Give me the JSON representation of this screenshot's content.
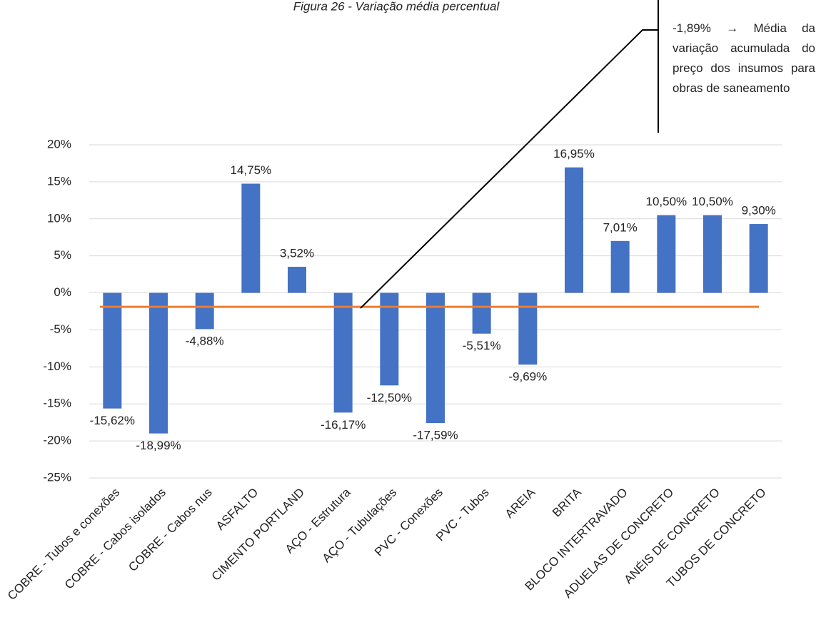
{
  "chart_data": {
    "type": "bar",
    "title": "Figura 26 - Variação média percentual",
    "categories": [
      "COBRE - Tubos e conexões",
      "COBRE - Cabos isolados",
      "COBRE - Cabos nus",
      "ASFALTO",
      "CIMENTO PORTLAND",
      "AÇO - Estrutura",
      "AÇO - Tubulações",
      "PVC - Conexões",
      "PVC - Tubos",
      "AREIA",
      "BRITA",
      "BLOCO INTERTRAVADO",
      "ADUELAS DE CONCRETO",
      "ANÉIS DE CONCRETO",
      "TUBOS DE CONCRETO"
    ],
    "values": [
      -15.62,
      -18.99,
      -4.88,
      14.75,
      3.52,
      -16.17,
      -12.5,
      -17.59,
      -5.51,
      -9.69,
      16.95,
      7.01,
      10.5,
      10.5,
      9.3
    ],
    "value_labels": [
      "-15,62%",
      "-18,99%",
      "-4,88%",
      "14,75%",
      "3,52%",
      "-16,17%",
      "-12,50%",
      "-17,59%",
      "-5,51%",
      "-9,69%",
      "16,95%",
      "7,01%",
      "10,50%",
      "10,50%",
      "9,30%"
    ],
    "color": "#4472c4",
    "ylim": [
      -25,
      20
    ],
    "yticks": [
      {
        "value": -25,
        "label": "-25%"
      },
      {
        "value": -20,
        "label": "-20%"
      },
      {
        "value": -15,
        "label": "-15%"
      },
      {
        "value": -10,
        "label": "-10%"
      },
      {
        "value": -5,
        "label": "-5%"
      },
      {
        "value": 0,
        "label": "0%"
      },
      {
        "value": 5,
        "label": "5%"
      },
      {
        "value": 10,
        "label": "10%"
      },
      {
        "value": 15,
        "label": "15%"
      },
      {
        "value": 20,
        "label": "20%"
      }
    ],
    "grid": true,
    "average": {
      "value": -1.89,
      "label": "-1,89% → Média da variação acumulada do preço dos insumos para obras de saneamento",
      "color": "#ed7d31"
    }
  }
}
